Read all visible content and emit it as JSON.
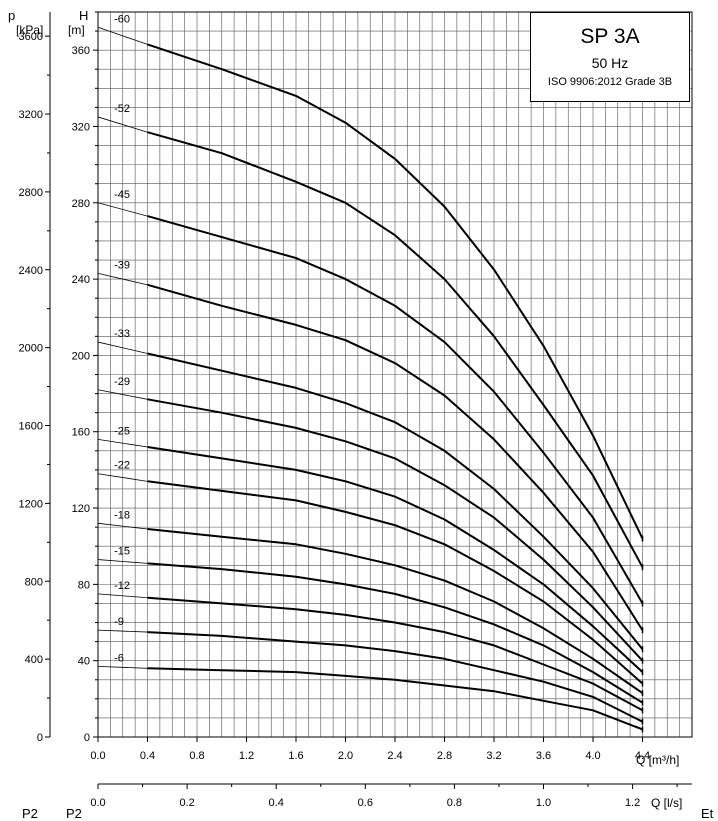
{
  "chart_data": {
    "type": "line",
    "title": "SP 3A",
    "subtitle": "50 Hz",
    "standard": "ISO 9906:2012 Grade 3B",
    "ylabel_left": "p",
    "ylabel_left_unit": "[kPa]",
    "ylabel": "H",
    "ylabel_unit": "[m]",
    "xlabel": "Q [m³/h]",
    "xlabel_secondary": "Q [l/s]",
    "xlim": [
      0,
      4.8
    ],
    "ylim": [
      0,
      380
    ],
    "kpa_lim": [
      0,
      3724
    ],
    "x_ticks": [
      "0.0",
      "0.4",
      "0.8",
      "1.2",
      "1.6",
      "2.0",
      "2.4",
      "2.8",
      "3.2",
      "3.6",
      "4.0",
      "4.4"
    ],
    "y_ticks": [
      "0",
      "40",
      "80",
      "120",
      "160",
      "200",
      "240",
      "280",
      "320",
      "360"
    ],
    "kpa_ticks": [
      "0",
      "400",
      "800",
      "1200",
      "1600",
      "2000",
      "2400",
      "2800",
      "3200",
      "3600"
    ],
    "ls_ticks": [
      "0.0",
      "0.2",
      "0.4",
      "0.6",
      "0.8",
      "1.0",
      "1.2"
    ],
    "grid": true,
    "curve_q": [
      0.4,
      1.0,
      1.6,
      2.0,
      2.4,
      2.8,
      3.2,
      3.6,
      4.0,
      4.4
    ],
    "series": [
      {
        "name": "-60",
        "h0": 372,
        "values": [
          363,
          350,
          336,
          322,
          303,
          278,
          245,
          205,
          158,
          104
        ]
      },
      {
        "name": "-52",
        "h0": 325,
        "values": [
          317,
          306,
          291,
          280,
          263,
          240,
          210,
          174,
          137,
          89
        ]
      },
      {
        "name": "-45",
        "h0": 280,
        "values": [
          273,
          262,
          251,
          240,
          226,
          207,
          181,
          149,
          115,
          70
        ]
      },
      {
        "name": "-39",
        "h0": 243,
        "values": [
          237,
          226,
          216,
          208,
          196,
          179,
          156,
          128,
          97,
          56
        ]
      },
      {
        "name": "-33",
        "h0": 207,
        "values": [
          201,
          192,
          183,
          175,
          165,
          150,
          130,
          105,
          78,
          46
        ]
      },
      {
        "name": "-29",
        "h0": 182,
        "values": [
          177,
          170,
          162,
          155,
          146,
          132,
          115,
          93,
          68,
          40
        ]
      },
      {
        "name": "-25",
        "h0": 156,
        "values": [
          152,
          146,
          140,
          134,
          126,
          114,
          98,
          80,
          58,
          34
        ]
      },
      {
        "name": "-22",
        "h0": 138,
        "values": [
          134,
          129,
          124,
          118,
          111,
          101,
          87,
          71,
          51,
          28
        ]
      },
      {
        "name": "-18",
        "h0": 112,
        "values": [
          109,
          105,
          101,
          96,
          90,
          82,
          71,
          57,
          41,
          23
        ]
      },
      {
        "name": "-15",
        "h0": 93,
        "values": [
          91,
          88,
          84,
          80,
          75,
          68,
          59,
          48,
          34,
          18
        ]
      },
      {
        "name": "-12",
        "h0": 75,
        "values": [
          73,
          70,
          67,
          64,
          60,
          55,
          48,
          38,
          28,
          14
        ]
      },
      {
        "name": "-9",
        "h0": 56,
        "values": [
          55,
          53,
          50,
          48,
          45,
          41,
          35,
          29,
          21,
          8
        ]
      },
      {
        "name": "-6",
        "h0": 37,
        "values": [
          36,
          35,
          34,
          32,
          30,
          27,
          24,
          19,
          14,
          4
        ]
      }
    ]
  },
  "bottom_labels": {
    "left": "P2",
    "left2": "P2",
    "right": "Et"
  }
}
